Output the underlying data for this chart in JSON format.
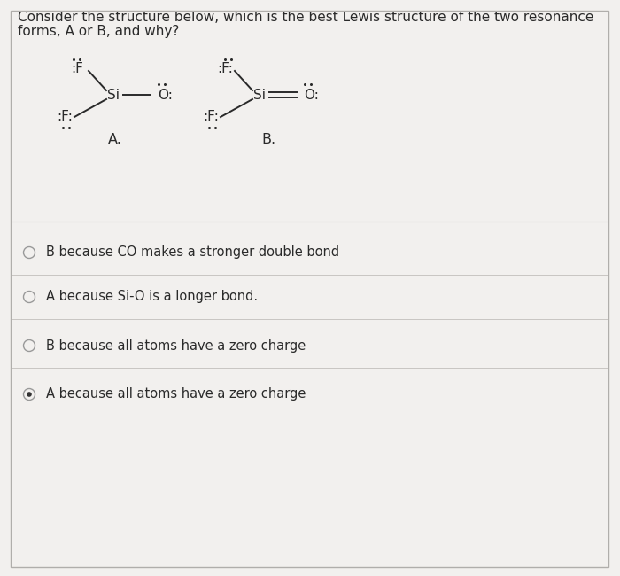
{
  "title_line1": "Consider the structure below, which is the best Lewis structure of the two resonance",
  "title_line2": "forms, A or B, and why?",
  "bg_color": "#f2f0ee",
  "text_color": "#2a2a2a",
  "label_A": "A.",
  "label_B": "B.",
  "options": [
    {
      "text": "B because CO makes a stronger double bond",
      "selected": false
    },
    {
      "text": "A because Si-O is a longer bond.",
      "selected": false
    },
    {
      "text": "B because all atoms have a zero charge",
      "selected": false
    },
    {
      "text": "A because all atoms have a zero charge",
      "selected": true
    }
  ],
  "option_font_size": 10.5,
  "title_font_size": 11,
  "struct_font_size": 11,
  "line_color": "#c8c5c2",
  "border_color": "#b0aeab",
  "radio_color": "#999999",
  "dot_color": "#555555",
  "selected_dot_color": "#333333"
}
